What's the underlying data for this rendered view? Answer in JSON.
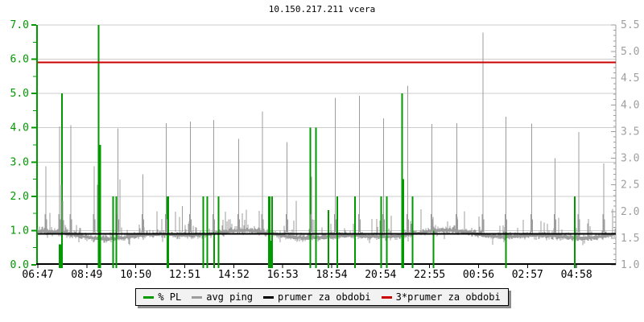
{
  "title": "10.150.217.211 vcera",
  "legend": {
    "items": [
      {
        "key": "pl",
        "label": "% PL",
        "color": "#009900"
      },
      {
        "key": "avg-ping",
        "label": "avg ping",
        "color": "#9c9c9c"
      },
      {
        "key": "prumer",
        "label": "prumer za obdobi",
        "color": "#000000"
      },
      {
        "key": "3x-prumer",
        "label": "3*prumer za obdobi",
        "color": "#cc0000"
      }
    ]
  },
  "colors": {
    "green": "#009900",
    "gray_series": "#9c9c9c",
    "grid": "#cdcdcd",
    "right_axis": "#9c9c9c",
    "right_labels": "#9e9e9e",
    "black": "#000000",
    "red": "#cc0000",
    "x_labels": "#000000"
  },
  "chart_data": {
    "type": "line+bar",
    "title": "10.150.217.211 vcera",
    "x_tick_labels": [
      "06:47",
      "08:49",
      "10:50",
      "12:51",
      "14:52",
      "16:53",
      "18:54",
      "20:54",
      "22:55",
      "00:56",
      "02:57",
      "04:58"
    ],
    "x_span_hours": 24,
    "x_label_interval_minutes": 122,
    "axes": {
      "left": {
        "series": "% PL",
        "min": 0.0,
        "max": 7.0,
        "major_step": 1.0,
        "minor_step": 0.5,
        "tick_labels": [
          "0.0",
          "1.0",
          "2.0",
          "3.0",
          "4.0",
          "5.0",
          "6.0",
          "7.0"
        ],
        "color": "#009900"
      },
      "right": {
        "series": "avg ping",
        "min": 1.0,
        "max": 5.5,
        "major_step": 0.5,
        "minor_step": 0.1,
        "tick_labels": [
          "1.0",
          "1.5",
          "2.0",
          "2.5",
          "3.0",
          "3.5",
          "4.0",
          "4.5",
          "5.0",
          "5.5"
        ],
        "color": "#9e9e9e"
      }
    },
    "grid": {
      "horizontal_at_left_values": [
        1,
        2,
        3,
        4,
        5,
        6,
        7
      ],
      "vertical": false
    },
    "avg_line": {
      "name": "prumer za obdobi",
      "value_right_axis": 1.58,
      "color": "#000000"
    },
    "avg3_line": {
      "name": "3*prumer za obdobi",
      "value_right_axis": 4.8,
      "color": "#cc0000"
    },
    "ping_baseline": {
      "mean_ms": 1.58,
      "band_halfwidth_ms": 0.08,
      "dip_min_ms": 1.35,
      "bump_max_ms": 2.2
    },
    "pl_bars_percent": [
      {
        "o": 28.5,
        "v": 0.6,
        "w": 5
      },
      {
        "o": 30,
        "v": 5.0
      },
      {
        "o": 75.5,
        "v": 7.0
      },
      {
        "o": 77.5,
        "v": 3.5
      },
      {
        "o": 93.7,
        "v": 2.0
      },
      {
        "o": 97.7,
        "v": 2.0
      },
      {
        "o": 161.3,
        "v": 2.0,
        "w": 3
      },
      {
        "o": 205.3,
        "v": 2.0
      },
      {
        "o": 210.3,
        "v": 2.0
      },
      {
        "o": 219,
        "v": 1.0
      },
      {
        "o": 224.7,
        "v": 2.0
      },
      {
        "o": 287.5,
        "v": 2.0,
        "w": 3
      },
      {
        "o": 291,
        "v": 2.0
      },
      {
        "o": 289,
        "v": 0.7,
        "w": 6
      },
      {
        "o": 338.7,
        "v": 4.0
      },
      {
        "o": 345.3,
        "v": 4.0
      },
      {
        "o": 361,
        "v": 1.6
      },
      {
        "o": 372,
        "v": 2.0
      },
      {
        "o": 394,
        "v": 2.0
      },
      {
        "o": 426.3,
        "v": 2.0
      },
      {
        "o": 433.7,
        "v": 2.0
      },
      {
        "o": 452.3,
        "v": 5.0
      },
      {
        "o": 454,
        "v": 2.5
      },
      {
        "o": 465.3,
        "v": 2.0
      },
      {
        "o": 491.3,
        "v": 1.0
      },
      {
        "o": 581.3,
        "v": 1.0
      },
      {
        "o": 667,
        "v": 2.0
      }
    ],
    "ping_spikes_ms": [
      {
        "o": 10,
        "v": 2.85
      },
      {
        "o": 27,
        "v": 3.6
      },
      {
        "o": 29,
        "v": 2.5
      },
      {
        "o": 31,
        "v": 2.2
      },
      {
        "o": 41,
        "v": 3.62
      },
      {
        "o": 70,
        "v": 2.85
      },
      {
        "o": 74,
        "v": 2.5
      },
      {
        "o": 99.7,
        "v": 3.56
      },
      {
        "o": 102,
        "v": 2.6
      },
      {
        "o": 130.7,
        "v": 2.7
      },
      {
        "o": 159.7,
        "v": 3.66
      },
      {
        "o": 171,
        "v": 2.0
      },
      {
        "o": 179.7,
        "v": 2.1
      },
      {
        "o": 189.7,
        "v": 3.69
      },
      {
        "o": 218.7,
        "v": 3.72
      },
      {
        "o": 233,
        "v": 2.0
      },
      {
        "o": 249.7,
        "v": 3.36
      },
      {
        "o": 279,
        "v": 3.88
      },
      {
        "o": 309.7,
        "v": 3.3
      },
      {
        "o": 321,
        "v": 2.2
      },
      {
        "o": 340,
        "v": 2.65
      },
      {
        "o": 369.7,
        "v": 4.13
      },
      {
        "o": 399.7,
        "v": 4.17
      },
      {
        "o": 429.7,
        "v": 3.75
      },
      {
        "o": 459.7,
        "v": 4.36
      },
      {
        "o": 489.7,
        "v": 3.64
      },
      {
        "o": 520.7,
        "v": 3.66
      },
      {
        "o": 553,
        "v": 5.36
      },
      {
        "o": 581.3,
        "v": 3.78
      },
      {
        "o": 613.7,
        "v": 3.65
      },
      {
        "o": 642.3,
        "v": 3.0
      },
      {
        "o": 672,
        "v": 3.49
      },
      {
        "o": 703,
        "v": 2.9
      },
      {
        "o": 714,
        "v": 2.05
      }
    ]
  }
}
